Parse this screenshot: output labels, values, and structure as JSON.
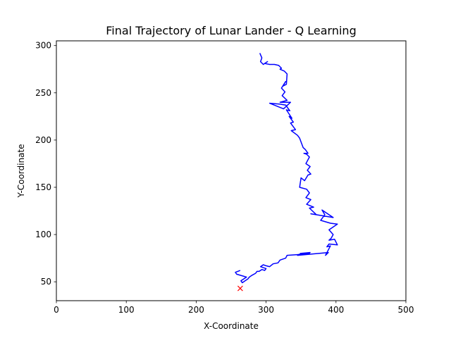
{
  "chart_data": {
    "type": "line",
    "title": "Final Trajectory of Lunar Lander - Q Learning",
    "xlabel": "X-Coordinate",
    "ylabel": "Y-Coordinate",
    "xlim": [
      0,
      500
    ],
    "ylim": [
      30,
      305
    ],
    "xticks": [
      0,
      100,
      200,
      300,
      400,
      500
    ],
    "yticks": [
      50,
      100,
      150,
      200,
      250,
      300
    ],
    "grid": false,
    "legend": false,
    "series": [
      {
        "color": "#0000ff",
        "x": [
          291,
          294,
          292,
          296,
          302,
          298,
          305,
          312,
          318,
          322,
          320,
          326,
          330,
          329,
          324,
          328,
          322,
          327,
          323,
          330,
          320,
          335,
          325,
          305,
          320,
          328,
          334,
          329,
          337,
          333,
          339,
          335,
          342,
          336,
          345,
          348,
          350,
          353,
          356,
          360,
          354,
          358,
          362,
          357,
          363,
          359,
          364,
          360,
          355,
          350,
          348,
          358,
          362,
          357,
          364,
          358,
          368,
          362,
          372,
          364,
          396,
          380,
          384,
          378,
          392,
          402,
          390,
          396,
          393,
          390,
          398,
          402,
          390,
          387,
          392,
          385,
          389,
          345,
          362,
          347,
          363,
          349,
          350,
          330,
          328,
          320,
          317,
          310,
          305,
          300,
          296,
          292,
          300,
          298,
          294,
          290,
          287,
          285,
          280,
          276,
          274,
          270,
          266,
          264,
          272,
          258,
          256,
          263
        ],
        "y": [
          292,
          287,
          283,
          280,
          283,
          281,
          280,
          280,
          279,
          276,
          275,
          273,
          270,
          259,
          257,
          262,
          255,
          251,
          247,
          242,
          240,
          240,
          233,
          239,
          238,
          237,
          231,
          232,
          223,
          225,
          219,
          218,
          211,
          210,
          205,
          202,
          198,
          192,
          190,
          186,
          186,
          185,
          182,
          175,
          172,
          168,
          164,
          163,
          157,
          160,
          150,
          148,
          144,
          139,
          137,
          132,
          129,
          128,
          121,
          122,
          118,
          126,
          121,
          115,
          112,
          111,
          105,
          100,
          96,
          94,
          95,
          89,
          90,
          87,
          88,
          78,
          81,
          78,
          80,
          79,
          81,
          80,
          79,
          78,
          75,
          73,
          70,
          69,
          66,
          67,
          68,
          66,
          64,
          62,
          63,
          61,
          61,
          59,
          57,
          55,
          53,
          51,
          49,
          51,
          55,
          58,
          60,
          62
        ]
      }
    ],
    "marker": {
      "x": 263,
      "y": 43,
      "symbol": "x",
      "color": "#ff0000"
    }
  }
}
